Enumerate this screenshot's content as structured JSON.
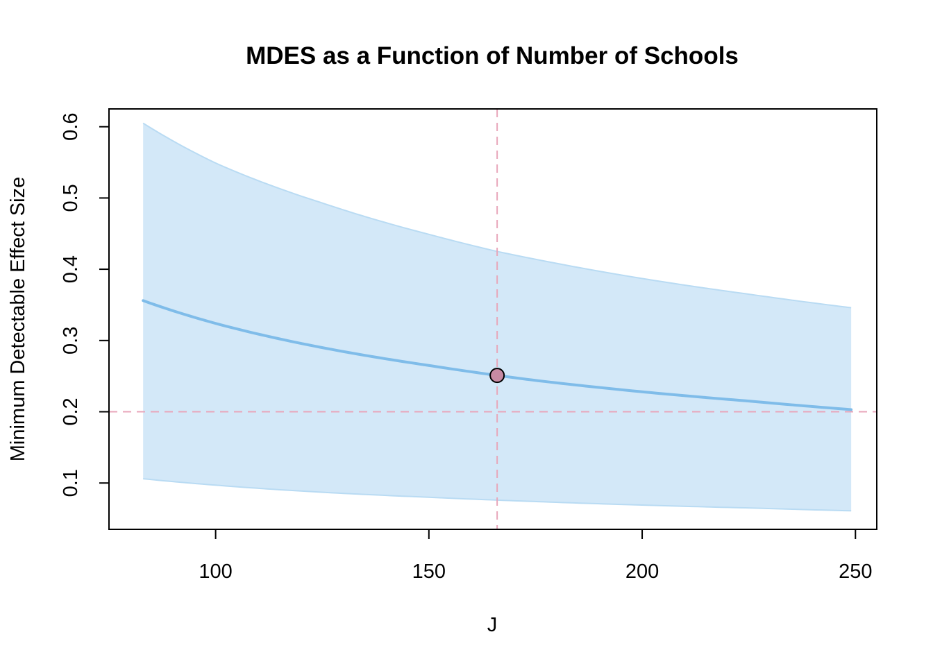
{
  "chart_data": {
    "type": "line",
    "title": "MDES as a Function of Number of Schools",
    "xlabel": "J",
    "ylabel": "Minimum Detectable Effect Size",
    "xlim": [
      75,
      255
    ],
    "ylim": [
      0.035,
      0.625
    ],
    "x_ticks": [
      100,
      150,
      200,
      250
    ],
    "x_tick_labels": [
      "100",
      "150",
      "200",
      "250"
    ],
    "y_ticks": [
      0.1,
      0.2,
      0.3,
      0.4,
      0.5,
      0.6
    ],
    "y_tick_labels": [
      "0.1",
      "0.2",
      "0.3",
      "0.4",
      "0.5",
      "0.6"
    ],
    "grid": false,
    "series": [
      {
        "role": "estimate",
        "x": [
          83,
          100,
          125,
          150,
          166,
          175,
          200,
          225,
          249
        ],
        "values": [
          0.356,
          0.324,
          0.29,
          0.265,
          0.251,
          0.244,
          0.228,
          0.215,
          0.203
        ]
      },
      {
        "role": "upper_bound",
        "x": [
          83,
          100,
          125,
          150,
          166,
          175,
          200,
          225,
          249
        ],
        "values": [
          0.605,
          0.549,
          0.493,
          0.449,
          0.425,
          0.414,
          0.387,
          0.365,
          0.346
        ]
      },
      {
        "role": "lower_bound",
        "x": [
          83,
          100,
          125,
          150,
          166,
          175,
          200,
          225,
          249
        ],
        "values": [
          0.106,
          0.097,
          0.087,
          0.08,
          0.076,
          0.074,
          0.069,
          0.065,
          0.061
        ]
      }
    ],
    "reference_lines": {
      "vertical_x": 166,
      "horizontal_y": 0.2
    },
    "highlight_point": {
      "x": 166,
      "y": 0.251
    },
    "colors": {
      "band_fill": "#d3e8f8",
      "band_edge": "#b9dbf3",
      "line": "#7fbce9",
      "reference": "#e8a6ba",
      "point_fill": "#c88aa3",
      "point_edge": "#000000"
    }
  }
}
